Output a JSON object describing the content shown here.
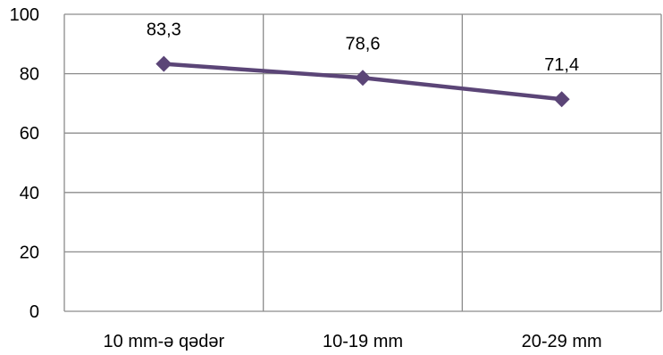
{
  "chart_data": {
    "type": "line",
    "categories": [
      "10 mm-ə qədər",
      "10-19 mm",
      "20-29 mm"
    ],
    "series": [
      {
        "values": [
          83.3,
          78.6,
          71.4
        ],
        "data_labels": [
          "83,3",
          "78,6",
          "71,4"
        ]
      }
    ],
    "ylim": [
      0,
      100
    ],
    "yticks": [
      0,
      20,
      40,
      60,
      80,
      100
    ],
    "grid": true,
    "legend": "none",
    "colors": {
      "line": "#5b4577",
      "marker": "#5b4577",
      "grid": "#8c8c8c"
    },
    "marker": "diamond"
  }
}
